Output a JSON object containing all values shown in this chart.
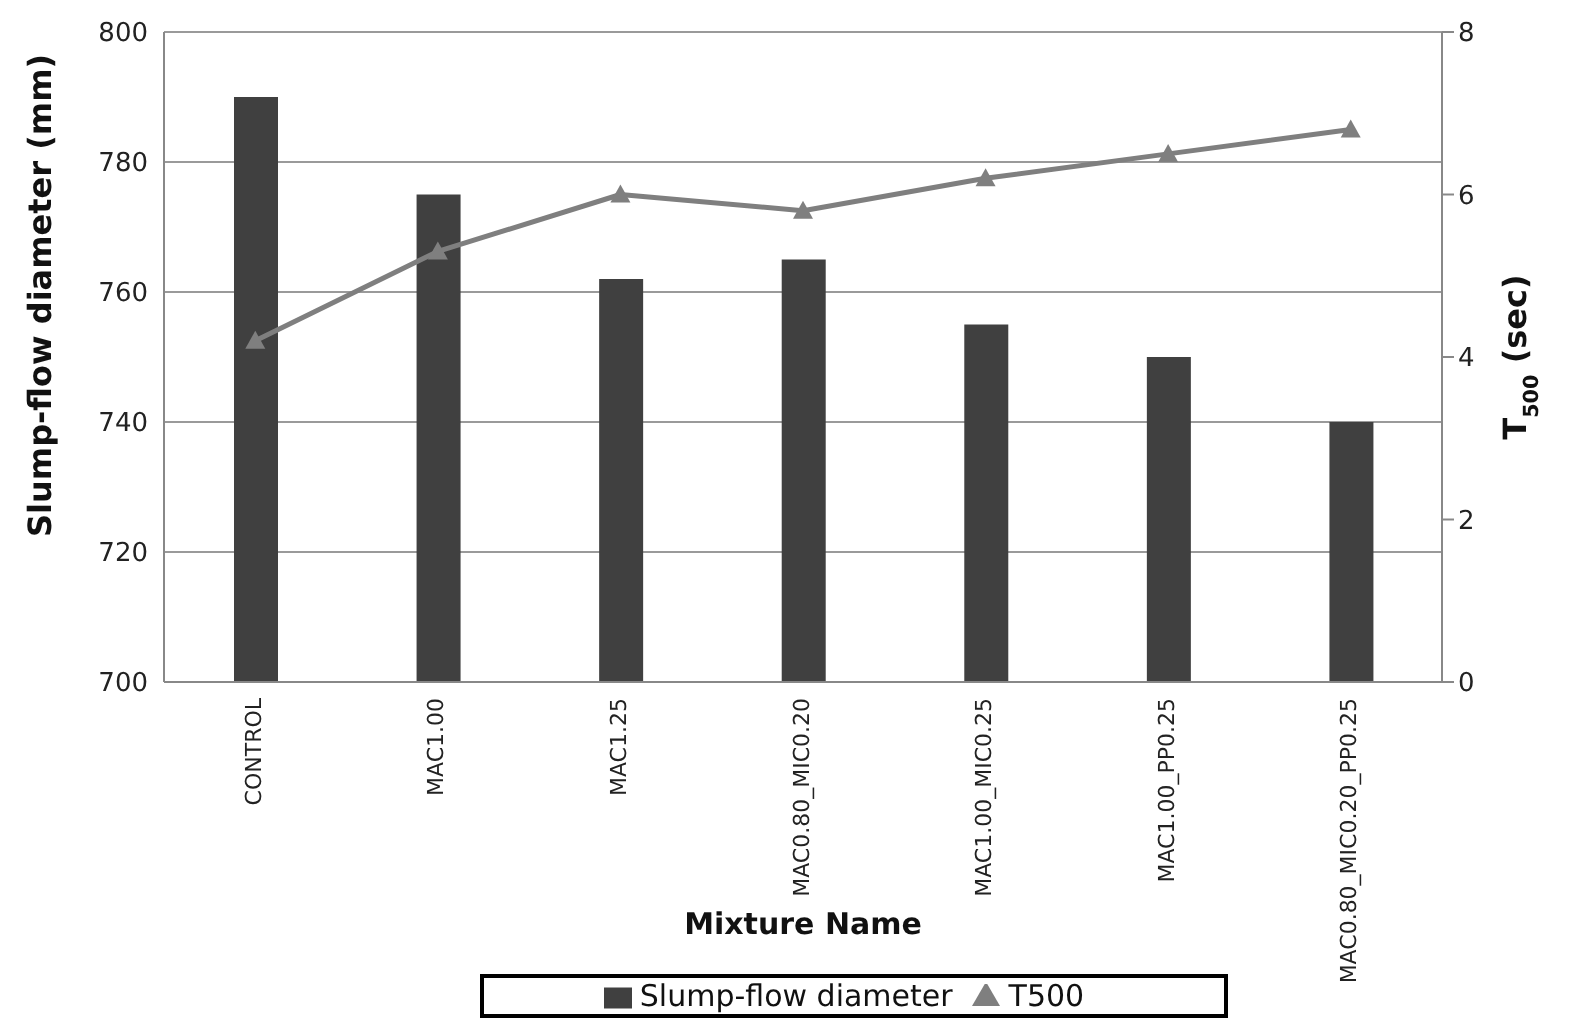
{
  "chart_data": {
    "type": "bar",
    "xlabel": "Mixture Name",
    "ylabel": "Slump-flow diameter (mm)",
    "y2label": "T$_{500}$ (sec)",
    "categories": [
      "CONTROL",
      "MAC1.00",
      "MAC1.25",
      "MAC0.80_MIC0.20",
      "MAC1.00_MIC0.25",
      "MAC1.00_PP0.25",
      "MAC0.80_MIC0.20_PP0.25"
    ],
    "series": [
      {
        "name": "Slump-flow diameter",
        "color": "#404040",
        "values": [
          790,
          775,
          762,
          765,
          755,
          750,
          740
        ]
      },
      {
        "name": "T500",
        "type": "line",
        "axis": "y2",
        "color": "#7f7f7f",
        "marker": "triangle",
        "values": [
          4.2,
          5.3,
          6.0,
          5.8,
          6.2,
          6.5,
          6.8
        ]
      }
    ],
    "ylim": [
      700,
      800
    ],
    "yticks": [
      700,
      720,
      740,
      760,
      780,
      800
    ],
    "y2lim": [
      0,
      8
    ],
    "y2ticks": [
      0,
      2,
      4,
      6,
      8
    ],
    "grid": "y",
    "legend": "bottom"
  }
}
